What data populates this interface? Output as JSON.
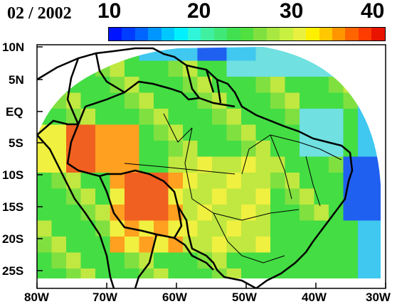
{
  "title_date": "02 / 2002",
  "colorbar": {
    "labels": [
      "10",
      "20",
      "30",
      "40"
    ],
    "colors": [
      "#0014ff",
      "#003cff",
      "#0064ff",
      "#0096ff",
      "#00c8ff",
      "#00f0ff",
      "#30f5d8",
      "#40f0a0",
      "#40e878",
      "#40e050",
      "#50e040",
      "#80e040",
      "#a8e840",
      "#c8f040",
      "#e8f040",
      "#fff000",
      "#ffc800",
      "#ff9600",
      "#ff6400",
      "#ff3c00",
      "#e81400"
    ]
  },
  "axes": {
    "x_labels": [
      "80W",
      "70W",
      "60W",
      "50W",
      "40W",
      "30W"
    ],
    "y_labels": [
      "10N",
      "5N",
      "EQ",
      "5S",
      "10S",
      "15S",
      "20S",
      "25S"
    ]
  },
  "palette": {
    "dark_blue": "#2060f0",
    "light_blue": "#40c8f0",
    "cyan": "#70e0e0",
    "green": "#44dd44",
    "light_green": "#80e040",
    "yellow_green": "#c0e840",
    "yellow": "#f0f040",
    "orange": "#ffa020",
    "red_orange": "#f06020",
    "ocean": "#ffffff"
  }
}
